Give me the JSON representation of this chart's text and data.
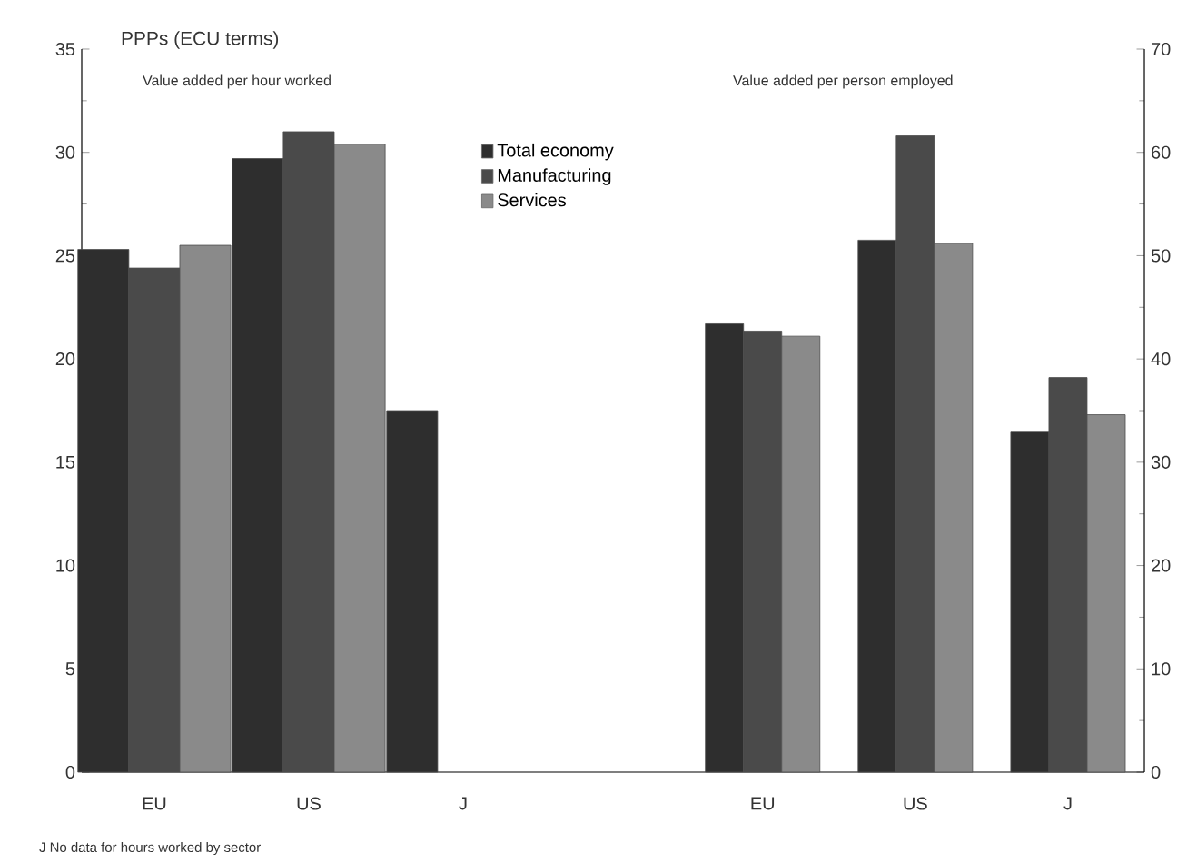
{
  "chart_data": [
    {
      "type": "bar",
      "ylabel": "PPPs (ECU terms)",
      "subtitle": "Value added per hour worked",
      "categories": [
        "EU",
        "US",
        "J"
      ],
      "series": [
        {
          "name": "Total economy",
          "color": "#2e2e2e",
          "values": [
            25.3,
            29.7,
            17.5
          ]
        },
        {
          "name": "Manufacturing",
          "color": "#4a4a4a",
          "values": [
            24.4,
            31.0,
            null
          ]
        },
        {
          "name": "Services",
          "color": "#8a8a8a",
          "values": [
            25.5,
            30.4,
            null
          ]
        }
      ],
      "ylim": [
        0,
        35
      ],
      "yticks": [
        0,
        5,
        10,
        15,
        20,
        25,
        30,
        35
      ],
      "legend": "top right",
      "annotations": [
        "J No data for hours worked by sector"
      ]
    },
    {
      "type": "bar",
      "subtitle": "Value added per person employed",
      "categories": [
        "EU",
        "US",
        "J"
      ],
      "series": [
        {
          "color": "#2e2e2e",
          "axis": "y2",
          "values": [
            43.4,
            51.5,
            33.0
          ]
        },
        {
          "color": "#4a4a4a",
          "axis": "y2",
          "values": [
            42.7,
            61.6,
            38.2
          ]
        },
        {
          "color": "#8a8a8a",
          "axis": "y2",
          "values": [
            42.2,
            51.2,
            34.6
          ]
        }
      ],
      "y2lim": [
        0,
        70
      ],
      "y2ticks": [
        0,
        10,
        20,
        30,
        40,
        50,
        60,
        70
      ]
    }
  ]
}
